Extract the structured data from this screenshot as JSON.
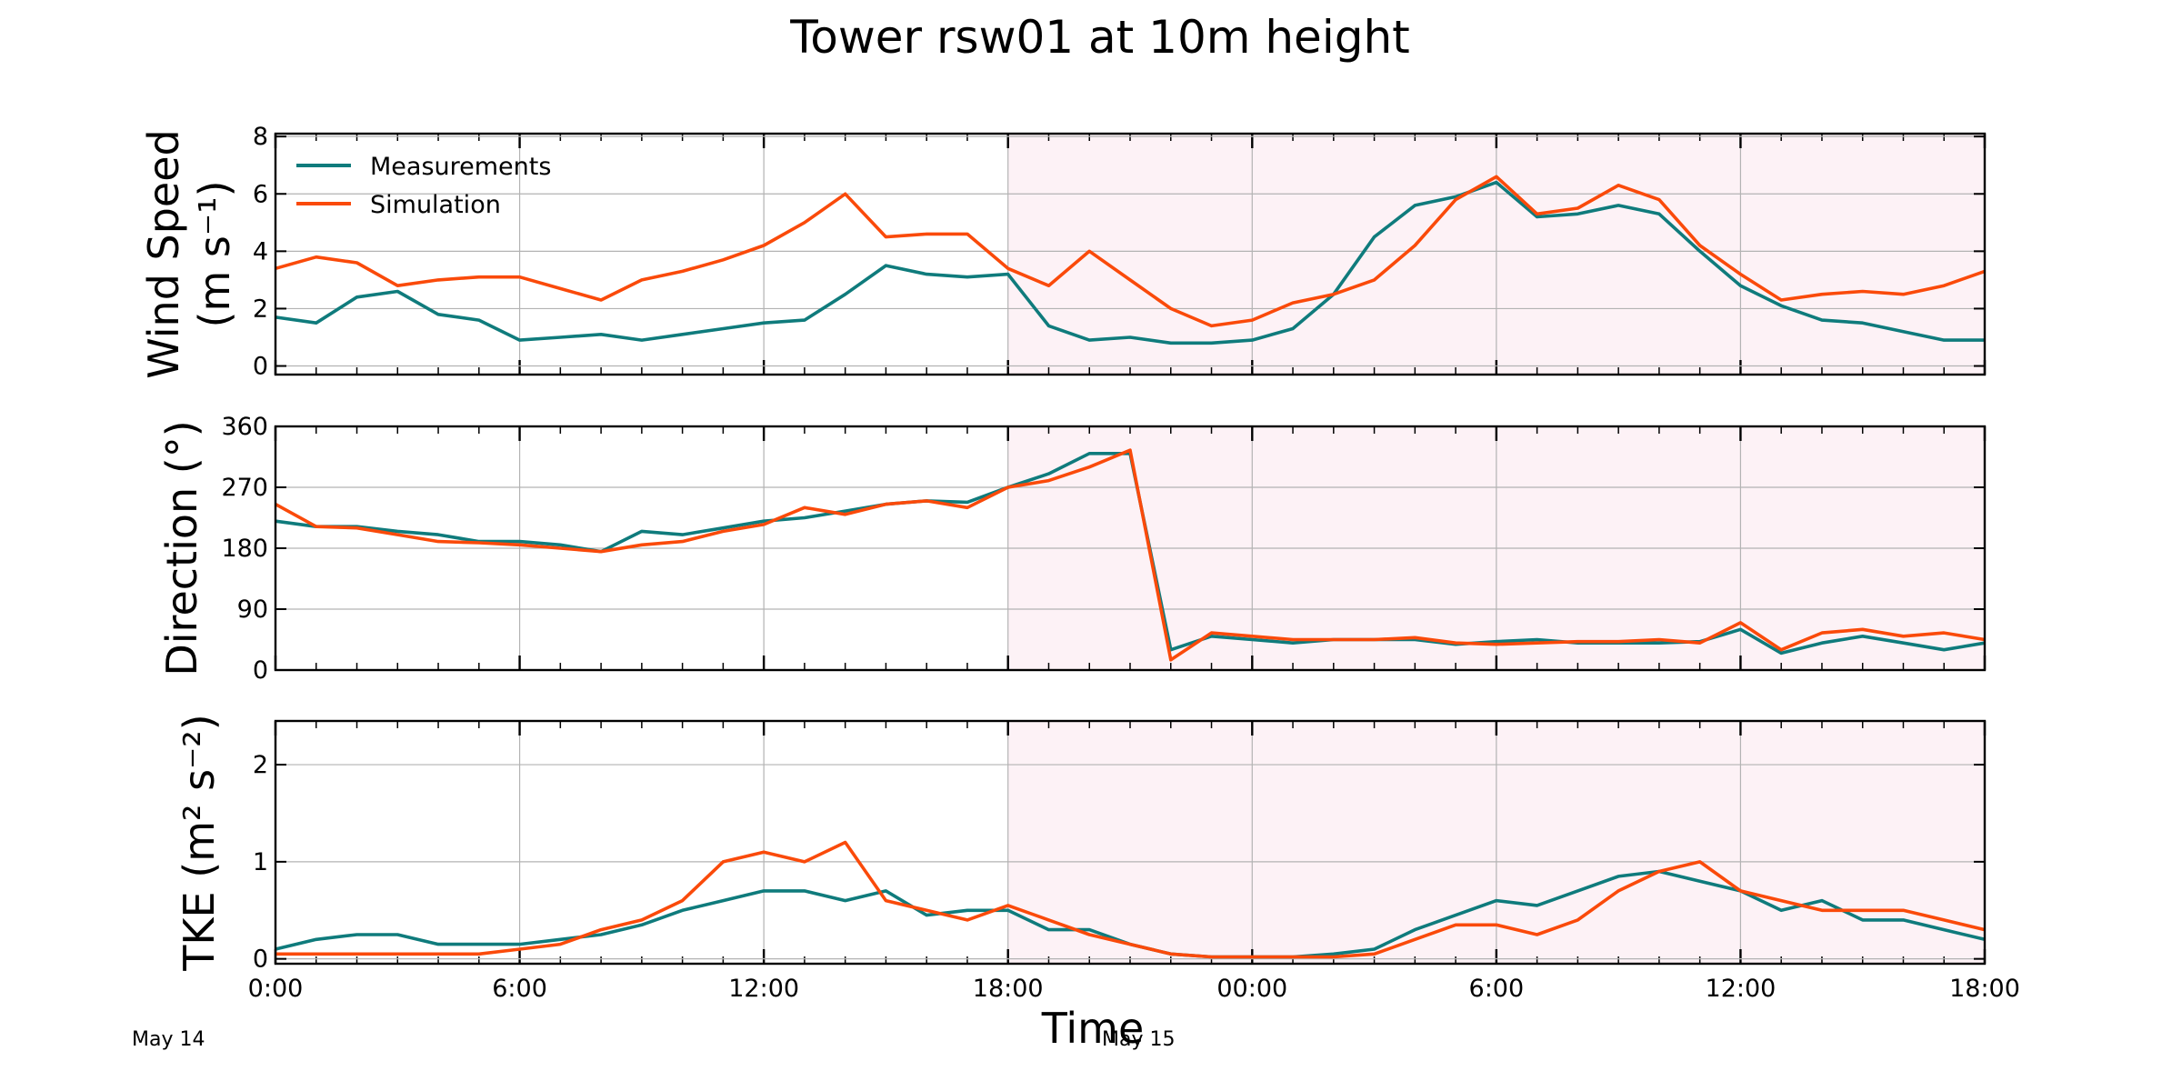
{
  "chart_data": {
    "type": "line",
    "title": "Tower rsw01 at 10m height",
    "xlabel": "Time",
    "x_range": [
      "2019-05-14 00:00",
      "2019-05-15 18:00"
    ],
    "x_tick_labels": [
      "0:00",
      "6:00",
      "12:00",
      "18:00",
      "00:00",
      "6:00",
      "12:00",
      "18:00"
    ],
    "date_labels": [
      "May 14",
      "May 15"
    ],
    "shaded_region": {
      "from": "May 14 18:00",
      "to": "May 15 18:00",
      "color": "#fdf2f6"
    },
    "grid": true,
    "legend": {
      "position": "top-left",
      "entries": [
        "Measurements",
        "Simulation"
      ]
    },
    "colors": {
      "Measurements": "#0f7b7c",
      "Simulation": "#fa4a0a"
    },
    "x_hours": [
      0,
      1,
      2,
      3,
      4,
      5,
      6,
      7,
      8,
      9,
      10,
      11,
      12,
      13,
      14,
      15,
      16,
      17,
      18,
      19,
      20,
      21,
      22,
      23,
      24,
      25,
      26,
      27,
      28,
      29,
      30,
      31,
      32,
      33,
      34,
      35,
      36,
      37,
      38,
      39,
      40,
      41,
      42
    ],
    "panels": [
      {
        "ylabel": "Wind Speed",
        "ylabel_unit": "(m s⁻¹)",
        "ylim": [
          -0.3,
          8.1
        ],
        "yticks": [
          "0",
          "2",
          "4",
          "6",
          "8"
        ],
        "series": [
          {
            "name": "Measurements",
            "values": [
              1.7,
              1.5,
              2.4,
              2.6,
              1.8,
              1.6,
              0.9,
              1.0,
              1.1,
              0.9,
              1.1,
              1.3,
              1.5,
              1.6,
              2.5,
              3.5,
              3.2,
              3.1,
              3.2,
              1.4,
              0.9,
              1.0,
              0.8,
              0.8,
              0.9,
              1.3,
              2.5,
              4.5,
              5.6,
              5.9,
              6.4,
              5.2,
              5.3,
              5.6,
              5.3,
              4.0,
              2.8,
              2.1,
              1.6,
              1.5,
              1.2,
              0.9,
              0.9
            ]
          },
          {
            "name": "Simulation",
            "values": [
              3.4,
              3.8,
              3.6,
              2.8,
              3.0,
              3.1,
              3.1,
              2.7,
              2.3,
              3.0,
              3.3,
              3.7,
              4.2,
              5.0,
              6.0,
              4.5,
              4.6,
              4.6,
              3.4,
              2.8,
              4.0,
              3.0,
              2.0,
              1.4,
              1.6,
              2.2,
              2.5,
              3.0,
              4.2,
              5.8,
              6.6,
              5.3,
              5.5,
              6.3,
              5.8,
              4.2,
              3.2,
              2.3,
              2.5,
              2.6,
              2.5,
              2.8,
              3.3
            ]
          }
        ]
      },
      {
        "ylabel": "Direction (°)",
        "ylim": [
          0,
          360
        ],
        "yticks": [
          "0",
          "90",
          "180",
          "270",
          "360"
        ],
        "series": [
          {
            "name": "Measurements",
            "values": [
              220,
              212,
              212,
              205,
              200,
              190,
              190,
              185,
              175,
              205,
              200,
              210,
              220,
              225,
              235,
              245,
              250,
              248,
              270,
              290,
              320,
              320,
              30,
              50,
              45,
              40,
              45,
              45,
              45,
              38,
              42,
              45,
              40,
              40,
              40,
              42,
              60,
              25,
              40,
              50,
              40,
              30,
              40
            ]
          },
          {
            "name": "Simulation",
            "values": [
              245,
              212,
              210,
              200,
              190,
              188,
              185,
              180,
              175,
              185,
              190,
              205,
              215,
              240,
              230,
              245,
              250,
              240,
              270,
              280,
              300,
              325,
              15,
              55,
              50,
              45,
              45,
              45,
              48,
              40,
              38,
              40,
              42,
              42,
              45,
              40,
              70,
              30,
              55,
              60,
              50,
              55,
              45
            ]
          }
        ]
      },
      {
        "ylabel": "TKE",
        "ylabel_unit": "(m² s⁻²)",
        "ylim": [
          -0.05,
          2.45
        ],
        "yticks": [
          "0",
          "1",
          "2"
        ],
        "series": [
          {
            "name": "Measurements",
            "values": [
              0.1,
              0.2,
              0.25,
              0.25,
              0.15,
              0.15,
              0.15,
              0.2,
              0.25,
              0.35,
              0.5,
              0.6,
              0.7,
              0.7,
              0.6,
              0.7,
              0.45,
              0.5,
              0.5,
              0.3,
              0.3,
              0.15,
              0.05,
              0.02,
              0.02,
              0.02,
              0.05,
              0.1,
              0.3,
              0.45,
              0.6,
              0.55,
              0.7,
              0.85,
              0.9,
              0.8,
              0.7,
              0.5,
              0.6,
              0.4,
              0.4,
              0.3,
              0.2
            ]
          },
          {
            "name": "Simulation",
            "values": [
              0.05,
              0.05,
              0.05,
              0.05,
              0.05,
              0.05,
              0.1,
              0.15,
              0.3,
              0.4,
              0.6,
              1.0,
              1.1,
              1.0,
              1.2,
              0.6,
              0.5,
              0.4,
              0.55,
              0.4,
              0.25,
              0.15,
              0.05,
              0.02,
              0.02,
              0.02,
              0.02,
              0.05,
              0.2,
              0.35,
              0.35,
              0.25,
              0.4,
              0.7,
              0.9,
              1.0,
              0.7,
              0.6,
              0.5,
              0.5,
              0.5,
              0.4,
              0.3
            ]
          }
        ]
      }
    ]
  }
}
